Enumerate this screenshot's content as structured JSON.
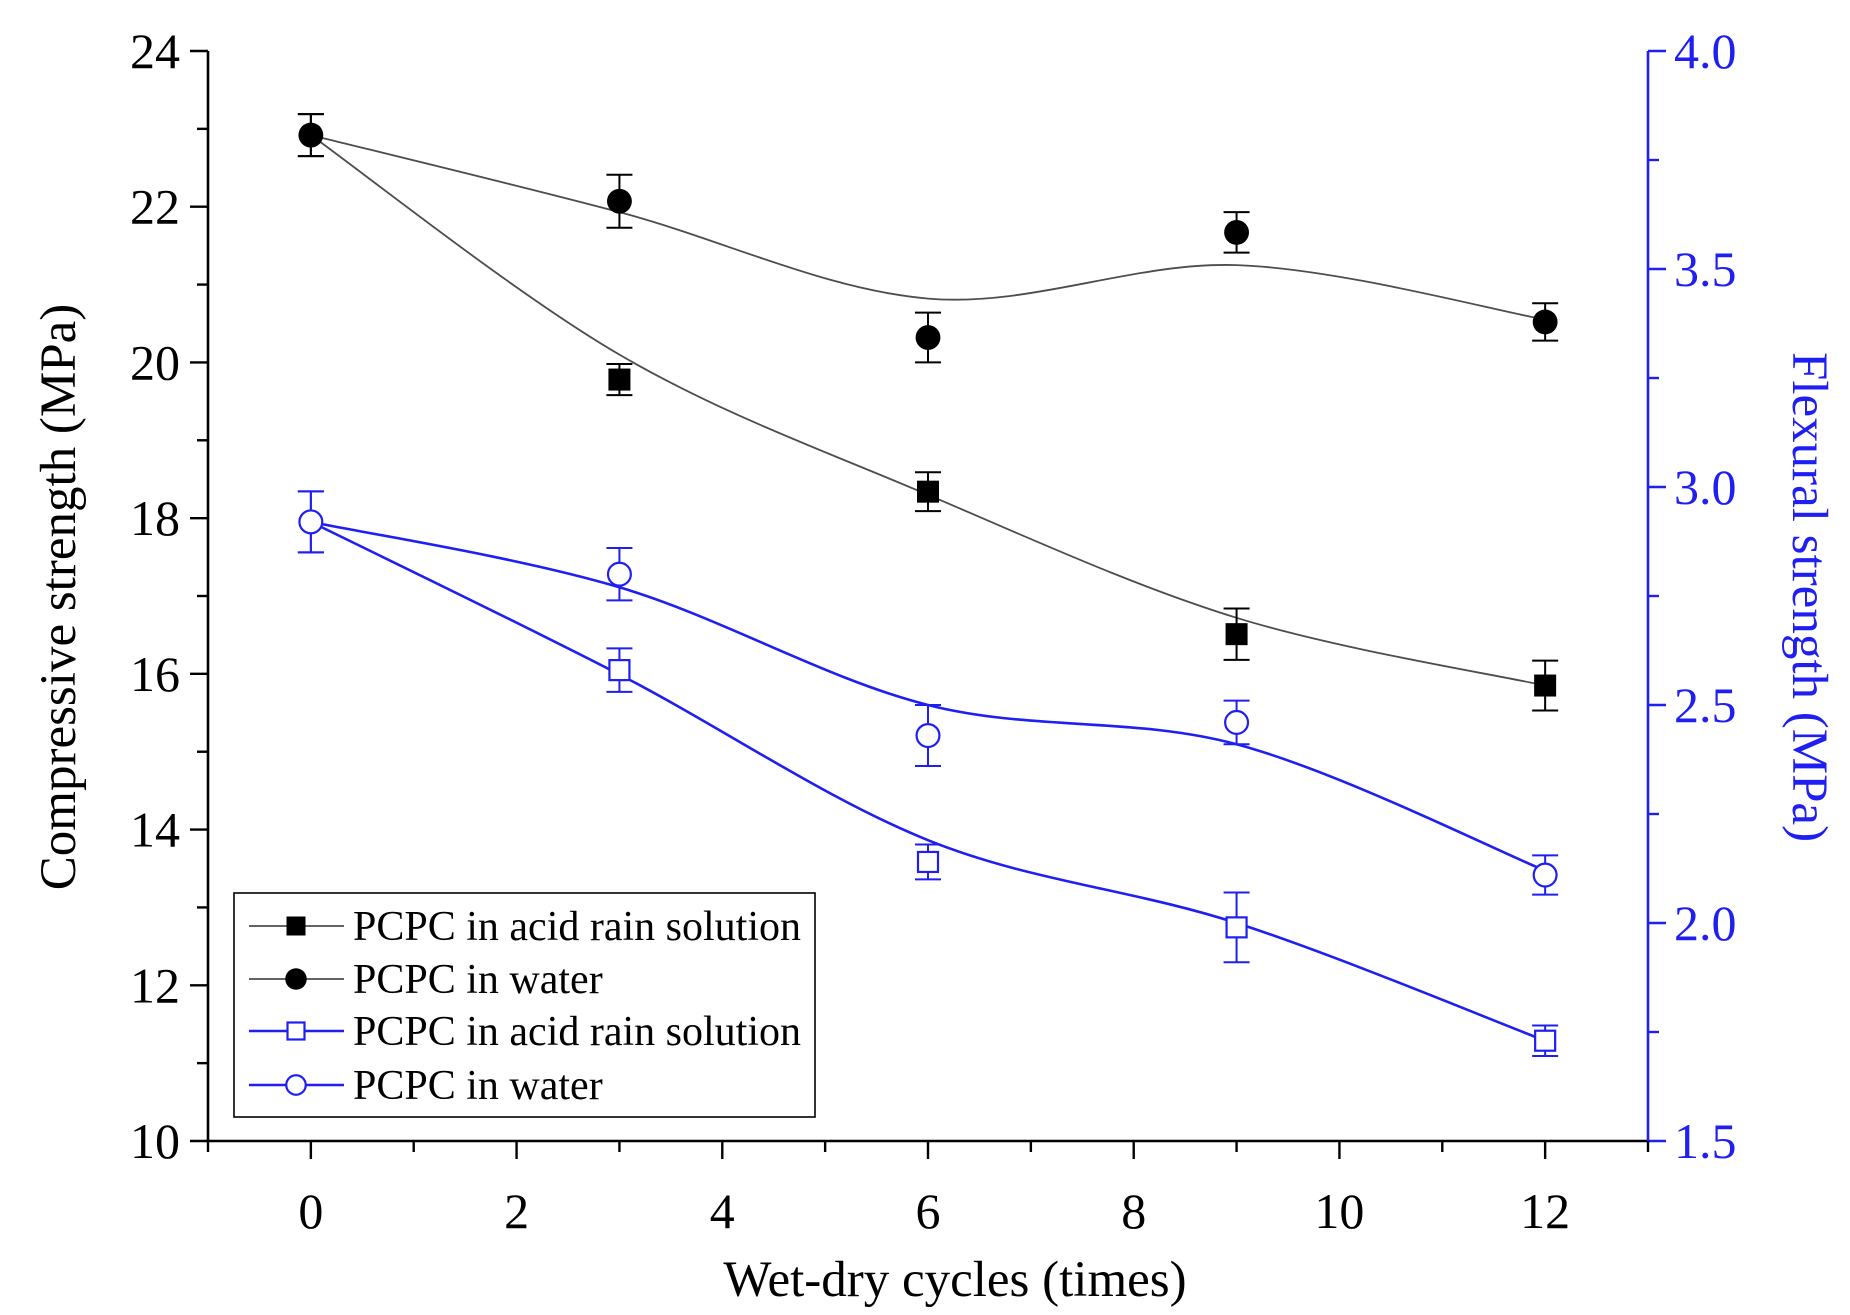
{
  "chart_data": {
    "type": "line",
    "title": "",
    "xlabel": "Wet-dry cycles (times)",
    "ylabel": "Compressive strength (MPa)",
    "y2label": "Flexural strength (MPa)",
    "xlim": [
      -1,
      13
    ],
    "ylim": [
      10,
      24
    ],
    "y2lim": [
      1.5,
      4.0
    ],
    "xtick_labels": [
      "0",
      "2",
      "4",
      "6",
      "8",
      "10",
      "12"
    ],
    "ytick_labels": [
      "10",
      "12",
      "14",
      "16",
      "18",
      "20",
      "22",
      "24"
    ],
    "y2tick_labels": [
      "1.5",
      "2.0",
      "2.5",
      "3.0",
      "3.5",
      "4.0"
    ],
    "grid": false,
    "legend": "bottom-left",
    "axis_colors": {
      "left": "#000000",
      "bottom": "#000000",
      "right": "#1f1ff2"
    },
    "x": [
      0,
      3,
      6,
      9,
      12
    ],
    "series": [
      {
        "name": "PCPC in acid rain solution",
        "axis": "left",
        "marker": "filled-square",
        "color": "#000000",
        "line_color": "#4d4d4d",
        "values": [
          22.92,
          19.78,
          18.34,
          16.51,
          15.85
        ],
        "errors": [
          0.27,
          0.2,
          0.25,
          0.33,
          0.32
        ],
        "fit": [
          22.92,
          20.1,
          18.3,
          16.72,
          15.85
        ]
      },
      {
        "name": "PCPC in water",
        "axis": "left",
        "marker": "filled-circle",
        "color": "#000000",
        "line_color": "#4d4d4d",
        "values": [
          22.92,
          22.07,
          20.32,
          21.67,
          20.52
        ],
        "errors": [
          0.27,
          0.34,
          0.32,
          0.26,
          0.24
        ],
        "fit": [
          22.92,
          21.93,
          20.82,
          21.25,
          20.55
        ]
      },
      {
        "name": "PCPC in acid rain solution",
        "axis": "right",
        "marker": "open-square",
        "color": "#1f1ff2",
        "line_color": "#1f1ff2",
        "values": [
          2.92,
          2.58,
          2.14,
          1.99,
          1.73
        ],
        "errors": [
          0.07,
          0.05,
          0.04,
          0.08,
          0.035
        ],
        "fit": [
          2.92,
          2.57,
          2.19,
          2.0,
          1.73
        ]
      },
      {
        "name": "PCPC in water",
        "axis": "right",
        "marker": "open-circle",
        "color": "#1f1ff2",
        "line_color": "#1f1ff2",
        "values": [
          2.92,
          2.8,
          2.43,
          2.46,
          2.11
        ],
        "errors": [
          0.07,
          0.06,
          0.07,
          0.05,
          0.045
        ],
        "fit": [
          2.92,
          2.77,
          2.5,
          2.41,
          2.12
        ]
      }
    ]
  }
}
